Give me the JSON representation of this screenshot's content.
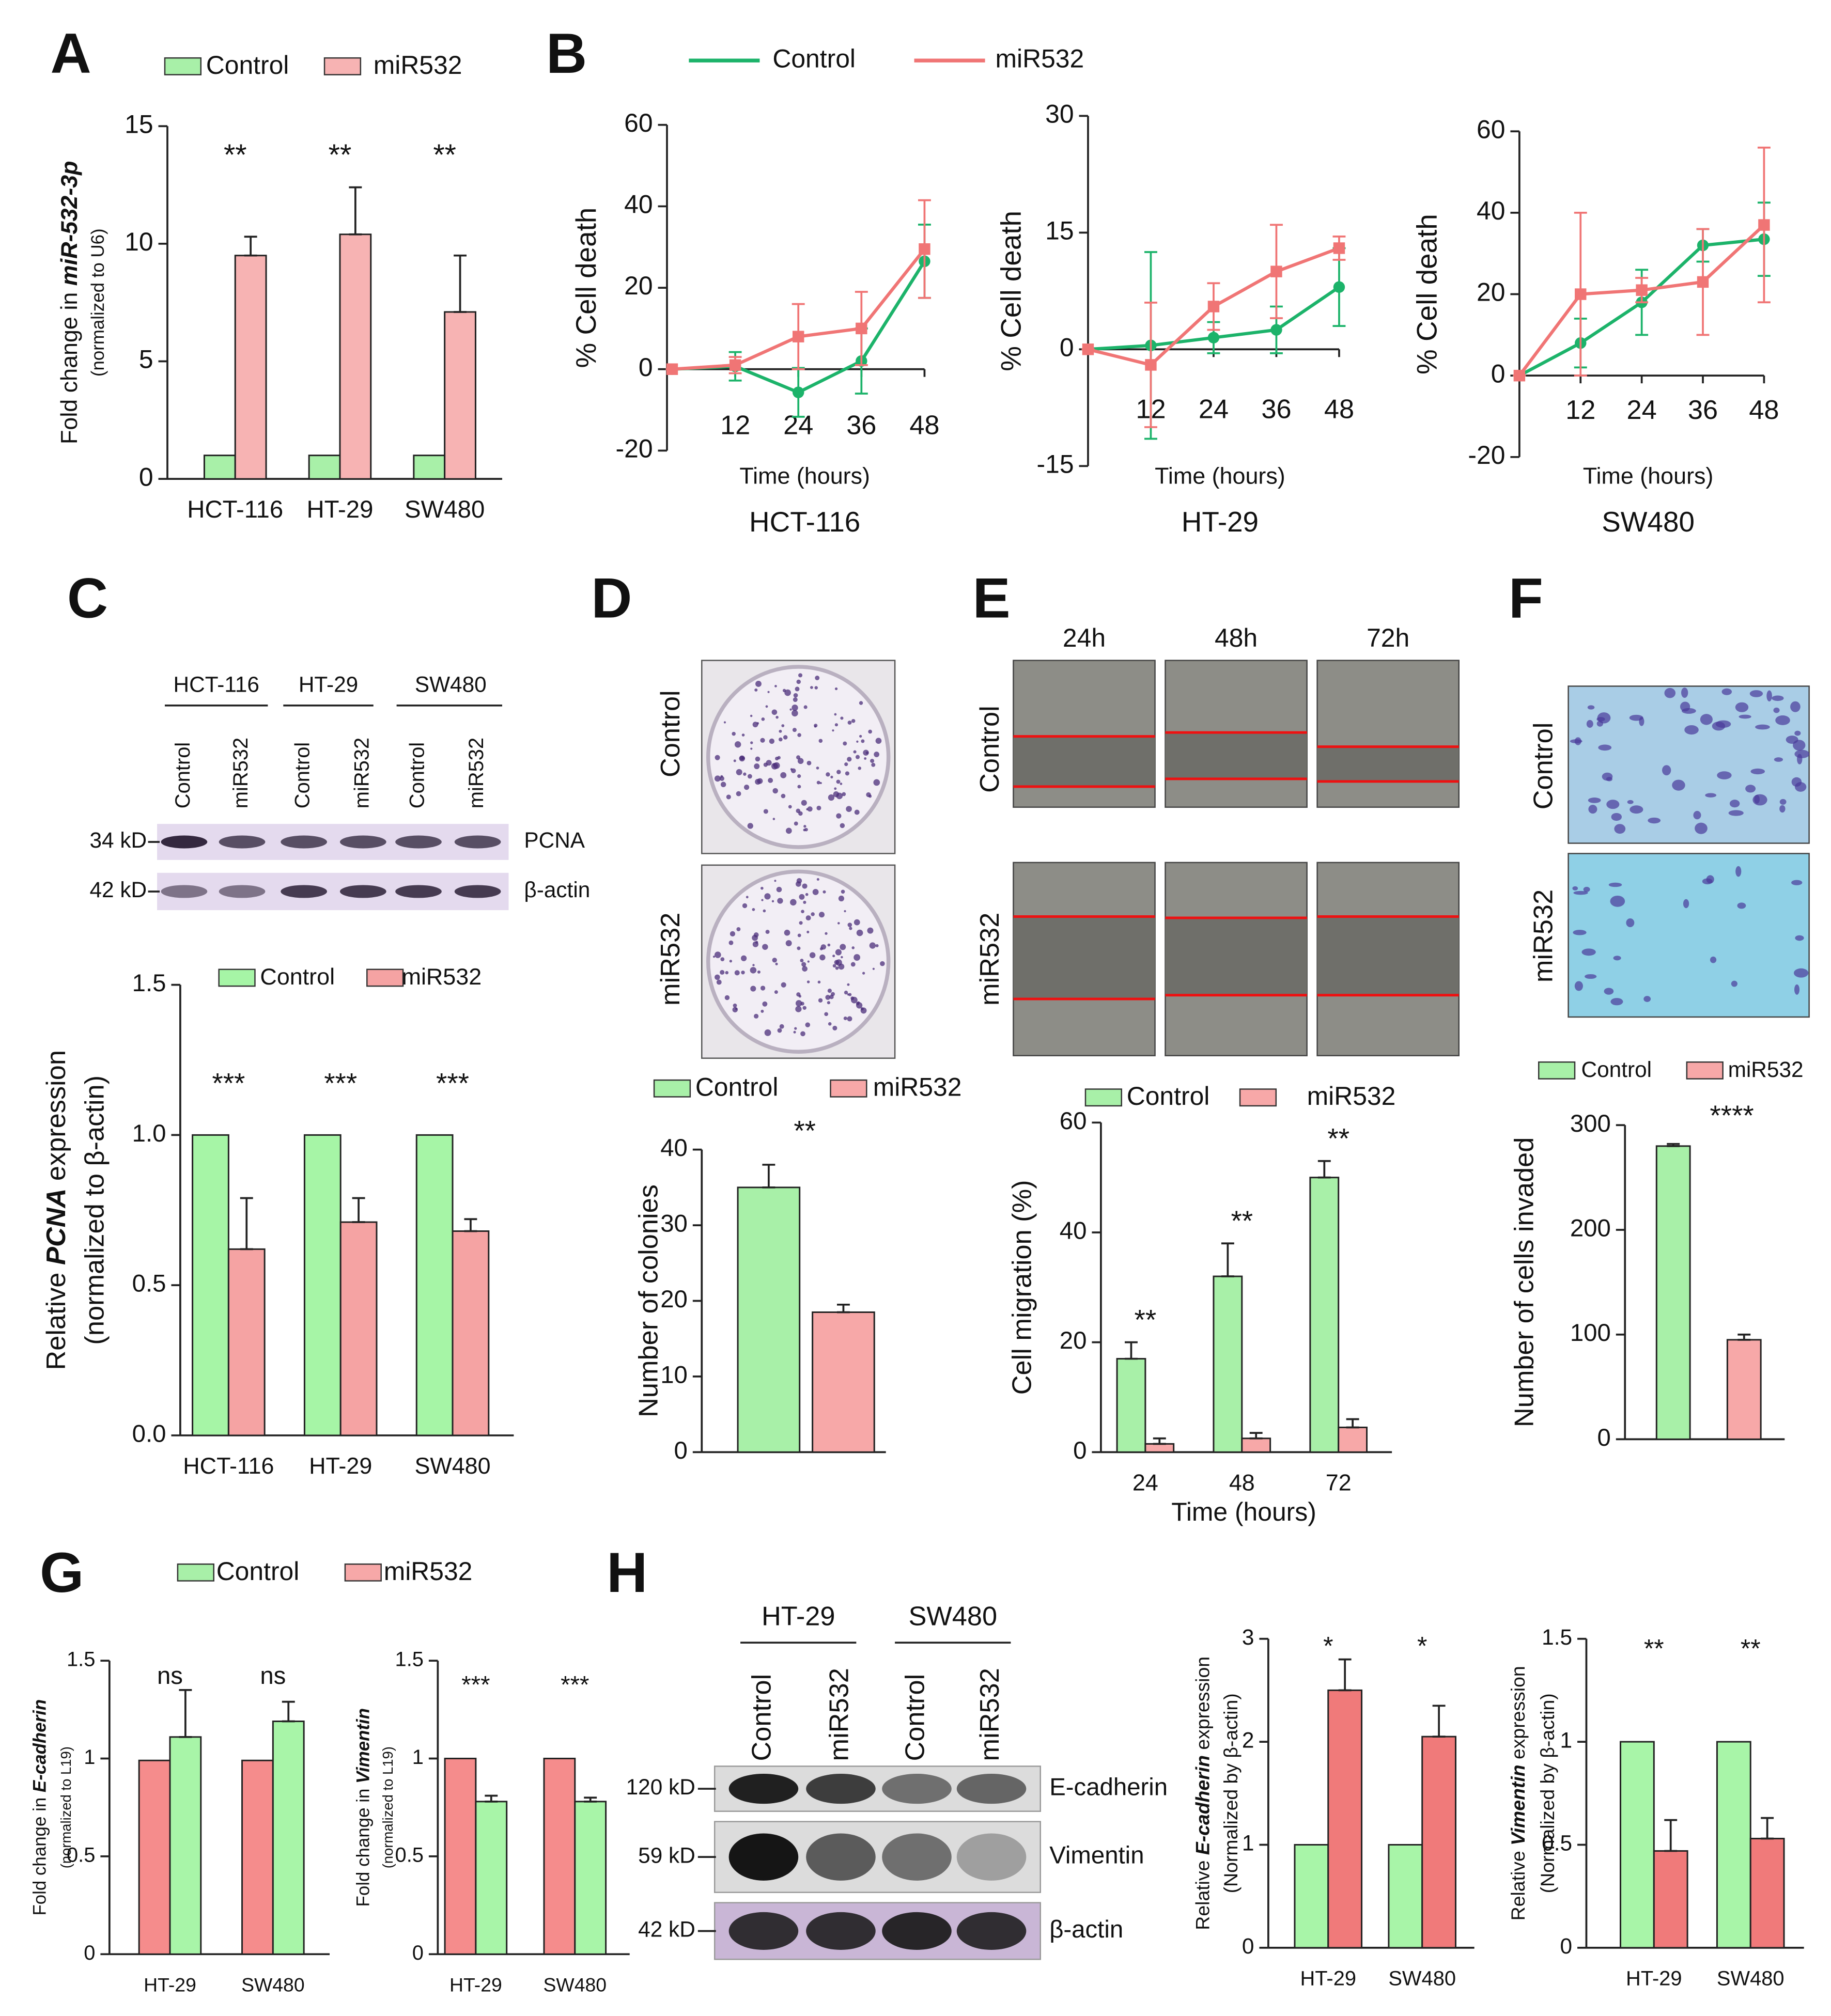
{
  "figure": {
    "panel_labels": [
      "A",
      "B",
      "C",
      "D",
      "E",
      "F",
      "G",
      "H"
    ],
    "blot_C": {
      "groups": [
        "HCT-116",
        "HT-29",
        "SW480"
      ],
      "lanes": [
        "Control",
        "miR532",
        "Control",
        "miR532",
        "Control",
        "miR532"
      ],
      "sizes": [
        "34 kD",
        "42 kD"
      ],
      "proteins": [
        "PCNA",
        "β-actin"
      ]
    },
    "plates_D": {
      "rows": [
        "Control",
        "miR532"
      ]
    },
    "wound_E": {
      "columns": [
        "24h",
        "48h",
        "72h"
      ],
      "rows": [
        "Control",
        "miR532"
      ]
    },
    "invasion_F": {
      "rows": [
        "Control",
        "miR532"
      ]
    },
    "blot_H": {
      "groups": [
        "HT-29",
        "SW480"
      ],
      "lanes": [
        "Control",
        "miR532",
        "Control",
        "miR532"
      ],
      "sizes": [
        "120 kD",
        "59 kD",
        "42 kD"
      ],
      "proteins": [
        "E-cadherin",
        "Vimentin",
        "β-actin"
      ]
    }
  },
  "chart_data": [
    {
      "type": "bar",
      "categories": [
        "HCT-116",
        "HT-29",
        "SW480"
      ],
      "series": [
        {
          "name": "Control",
          "color": "#a8f0a8",
          "values": [
            1,
            1,
            1
          ]
        },
        {
          "name": "miR532",
          "color": "#f7b3b3",
          "values": [
            9.5,
            10.4,
            7.1
          ],
          "errors": [
            0.8,
            2.0,
            2.4
          ]
        }
      ],
      "ylim": [
        0,
        15
      ],
      "yticks": [
        0,
        5,
        10,
        15
      ],
      "ylabel": [
        "Fold change in ",
        "miR-532-3p"
      ],
      "ylabel_sub": "(normalized to U6)",
      "annotations": [
        "**",
        "**",
        "**"
      ]
    },
    {
      "type": "line",
      "title": "HCT-116",
      "xlabel": "Time (hours)",
      "ylabel": [
        "% Cell death"
      ],
      "x": [
        0,
        12,
        24,
        36,
        48
      ],
      "xlim": [
        0,
        48
      ],
      "xticks": [
        12,
        24,
        36,
        48
      ],
      "ylim": [
        -20,
        60
      ],
      "yticks": [
        -20,
        0,
        20,
        40,
        60
      ],
      "series": [
        {
          "name": "Control",
          "color": "#1cb36a",
          "values": [
            0,
            0.7,
            -5.7,
            2,
            26.5
          ],
          "errors": [
            0,
            3.5,
            6,
            8,
            9
          ]
        },
        {
          "name": "miR532",
          "color": "#f07575",
          "values": [
            0,
            1,
            8,
            10,
            29.5
          ],
          "errors": [
            0,
            2,
            8,
            9,
            12
          ]
        }
      ]
    },
    {
      "type": "line",
      "title": "HT-29",
      "xlabel": "Time (hours)",
      "ylabel": [
        "% Cell death"
      ],
      "x": [
        0,
        12,
        24,
        36,
        48
      ],
      "xlim": [
        0,
        48
      ],
      "xticks": [
        12,
        24,
        36,
        48
      ],
      "ylim": [
        -15,
        30
      ],
      "yticks": [
        -15,
        0,
        15,
        30
      ],
      "series": [
        {
          "color": "#1cb36a",
          "values": [
            0,
            0.5,
            1.5,
            2.5,
            8
          ],
          "errors": [
            0,
            12,
            2,
            3,
            5
          ]
        },
        {
          "color": "#f07575",
          "values": [
            0,
            -2,
            5.5,
            10,
            13
          ],
          "errors": [
            0,
            8,
            3,
            6,
            1.5
          ]
        }
      ]
    },
    {
      "type": "line",
      "title": "SW480",
      "xlabel": "Time (hours)",
      "ylabel": [
        "% Cell death"
      ],
      "x": [
        0,
        12,
        24,
        36,
        48
      ],
      "xlim": [
        0,
        48
      ],
      "xticks": [
        12,
        24,
        36,
        48
      ],
      "ylim": [
        -20,
        60
      ],
      "yticks": [
        -20,
        0,
        20,
        40,
        60
      ],
      "series": [
        {
          "color": "#1cb36a",
          "values": [
            0,
            8,
            18,
            32,
            33.5
          ],
          "errors": [
            0,
            6,
            8,
            4,
            9
          ]
        },
        {
          "color": "#f07575",
          "values": [
            0,
            20,
            21,
            23,
            37
          ],
          "errors": [
            0,
            20,
            3,
            13,
            19
          ]
        }
      ]
    },
    {
      "type": "bar",
      "categories": [
        "HCT-116",
        "HT-29",
        "SW480"
      ],
      "series": [
        {
          "name": "Control",
          "color": "#a6f5a6",
          "values": [
            1,
            1,
            1
          ]
        },
        {
          "name": "miR532",
          "color": "#f5a3a3",
          "values": [
            0.62,
            0.71,
            0.68
          ],
          "errors": [
            0.17,
            0.08,
            0.04
          ]
        }
      ],
      "ylim": [
        0,
        1.5
      ],
      "yticks": [
        {
          "value": 0,
          "label": "0.0"
        },
        0.5,
        {
          "value": 1,
          "label": "1.0"
        },
        1.5
      ],
      "ylabel": [
        "Relative ",
        "PCNA",
        " expression"
      ],
      "ylabel_sub": "(normalized to β-actin)",
      "annotations": [
        "***",
        "***",
        "***"
      ]
    },
    {
      "type": "bar",
      "categories": [
        null,
        null
      ],
      "values": [
        35,
        18.5
      ],
      "errors": [
        3,
        1
      ],
      "colors": [
        "#a8f0a8",
        "#f7a8a8"
      ],
      "legend": [
        {
          "name": "Control",
          "color": "#a8f0a8"
        },
        {
          "name": "miR532",
          "color": "#f7a8a8"
        }
      ],
      "ylim": [
        0,
        40
      ],
      "yticks": [
        0,
        10,
        20,
        30,
        40
      ],
      "ylabel": [
        "Number of colonies"
      ],
      "annotations": [
        "**"
      ]
    },
    {
      "type": "bar",
      "categories": [
        "24",
        "48",
        "72"
      ],
      "xlabel": "Time (hours)",
      "series": [
        {
          "name": "Control",
          "color": "#a8f0a8",
          "values": [
            17,
            32,
            50
          ],
          "errors": [
            3,
            6,
            3
          ]
        },
        {
          "name": "miR532",
          "color": "#f7a8a8",
          "values": [
            1.5,
            2.5,
            4.5
          ],
          "errors": [
            1,
            1,
            1.5
          ]
        }
      ],
      "ylim": [
        0,
        60
      ],
      "yticks": [
        0,
        20,
        40,
        60
      ],
      "ylabel": [
        "Cell migration (%)"
      ],
      "annotations": [
        "**",
        "**",
        "**"
      ]
    },
    {
      "type": "bar",
      "categories": [
        null,
        null
      ],
      "values": [
        280,
        95
      ],
      "errors": [
        2,
        5
      ],
      "colors": [
        "#a8f0a8",
        "#f7a8a8"
      ],
      "legend": [
        {
          "name": "Control",
          "color": "#a8f0a8"
        },
        {
          "name": "miR532",
          "color": "#f7a8a8"
        }
      ],
      "ylim": [
        0,
        300
      ],
      "yticks": [
        0,
        100,
        200,
        300
      ],
      "ylabel": [
        "Number of cells invaded"
      ],
      "annotations": [
        "****"
      ]
    },
    {
      "type": "bar",
      "categories": [
        "HT-29",
        "SW480"
      ],
      "series": [
        {
          "color": "#f58c8c",
          "values": [
            0.99,
            0.99
          ]
        },
        {
          "color": "#a8f5a8",
          "values": [
            1.11,
            1.19
          ],
          "errors": [
            0.24,
            0.1
          ]
        }
      ],
      "legend": [
        {
          "name": "Control",
          "color": "#a8f0a8"
        },
        {
          "name": "miR532",
          "color": "#f7a8a8"
        }
      ],
      "ylim": [
        0,
        1.5
      ],
      "yticks": [
        0,
        0.5,
        1,
        1.5
      ],
      "ylabel": [
        "Fold change in ",
        "E-cadherin"
      ],
      "ylabel_sub": "(normalized to L19)",
      "annotations": [
        "ns",
        "ns"
      ]
    },
    {
      "type": "bar",
      "categories": [
        "HT-29",
        "SW480"
      ],
      "series": [
        {
          "color": "#f58c8c",
          "values": [
            1,
            1
          ]
        },
        {
          "color": "#a8f5a8",
          "values": [
            0.78,
            0.78
          ],
          "errors": [
            0.03,
            0.02
          ]
        }
      ],
      "ylim": [
        0,
        1.5
      ],
      "yticks": [
        0,
        0.5,
        1,
        1.5
      ],
      "ylabel": [
        "Fold change in ",
        "Vimentin"
      ],
      "ylabel_sub": "(normalized to L19)",
      "annotations": [
        "***",
        "***"
      ]
    },
    {
      "type": "bar",
      "categories": [
        "HT-29",
        "SW480"
      ],
      "series": [
        {
          "color": "#a8f5a8",
          "values": [
            1,
            1
          ]
        },
        {
          "color": "#f07a7a",
          "values": [
            2.5,
            2.05
          ],
          "errors": [
            0.3,
            0.3
          ]
        }
      ],
      "ylim": [
        0,
        3
      ],
      "yticks": [
        0,
        1,
        2,
        3
      ],
      "ylabel": [
        "Relative ",
        "E-cadherin",
        " expression"
      ],
      "ylabel_sub": "(Normalized by β-actin)",
      "annotations": [
        "*",
        "*"
      ]
    },
    {
      "type": "bar",
      "categories": [
        "HT-29",
        "SW480"
      ],
      "series": [
        {
          "color": "#a8f5a8",
          "values": [
            1,
            1
          ]
        },
        {
          "color": "#f07a7a",
          "values": [
            0.47,
            0.53
          ],
          "errors": [
            0.15,
            0.1
          ]
        }
      ],
      "ylim": [
        0,
        1.5
      ],
      "yticks": [
        0,
        0.5,
        1,
        1.5
      ],
      "ylabel": [
        "Relative ",
        "Vimentin",
        " expression"
      ],
      "ylabel_sub": "(Normalized by β-actin)",
      "annotations": [
        "**",
        "**"
      ]
    }
  ]
}
